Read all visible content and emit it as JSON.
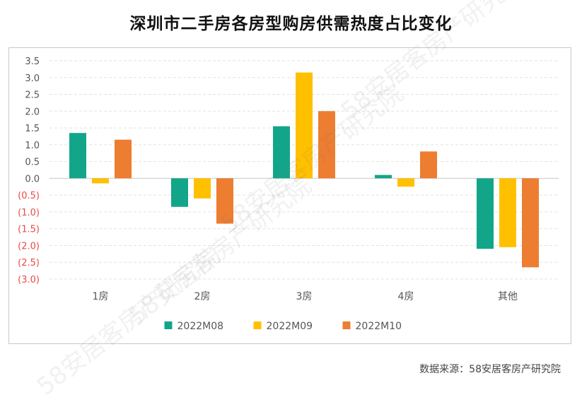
{
  "header": {
    "title": "深圳市二手房各房型购房供需热度占比变化"
  },
  "source": {
    "text": "数据来源：58安居客房产研究院"
  },
  "watermark": {
    "text": "58安居客房产研究院"
  },
  "chart_data": {
    "type": "bar",
    "title": "深圳市二手房各房型购房供需热度占比变化",
    "categories": [
      "1房",
      "2房",
      "3房",
      "4房",
      "其他"
    ],
    "series": [
      {
        "name": "2022M08",
        "color": "#13a58a",
        "values": [
          1.35,
          -0.85,
          1.55,
          0.1,
          -2.1
        ]
      },
      {
        "name": "2022M09",
        "color": "#ffc000",
        "values": [
          -0.15,
          -0.6,
          3.15,
          -0.25,
          -2.05
        ]
      },
      {
        "name": "2022M10",
        "color": "#ed7d31",
        "values": [
          1.15,
          -1.35,
          2.0,
          0.8,
          -2.65
        ]
      }
    ],
    "ylim": [
      -3.0,
      3.5
    ],
    "yticks": [
      "(3.0)",
      "(2.5)",
      "(2.0)",
      "(1.5)",
      "(1.0)",
      "(0.5)",
      "0.0",
      "0.5",
      "1.0",
      "1.5",
      "2.0",
      "2.5",
      "3.0",
      "3.5"
    ],
    "ytick_values": [
      -3.0,
      -2.5,
      -2.0,
      -1.5,
      -1.0,
      -0.5,
      0.0,
      0.5,
      1.0,
      1.5,
      2.0,
      2.5,
      3.0,
      3.5
    ],
    "negative_tick_color": "#e84a4a",
    "positive_tick_color": "#555555",
    "grid": true,
    "legend_position": "bottom"
  }
}
